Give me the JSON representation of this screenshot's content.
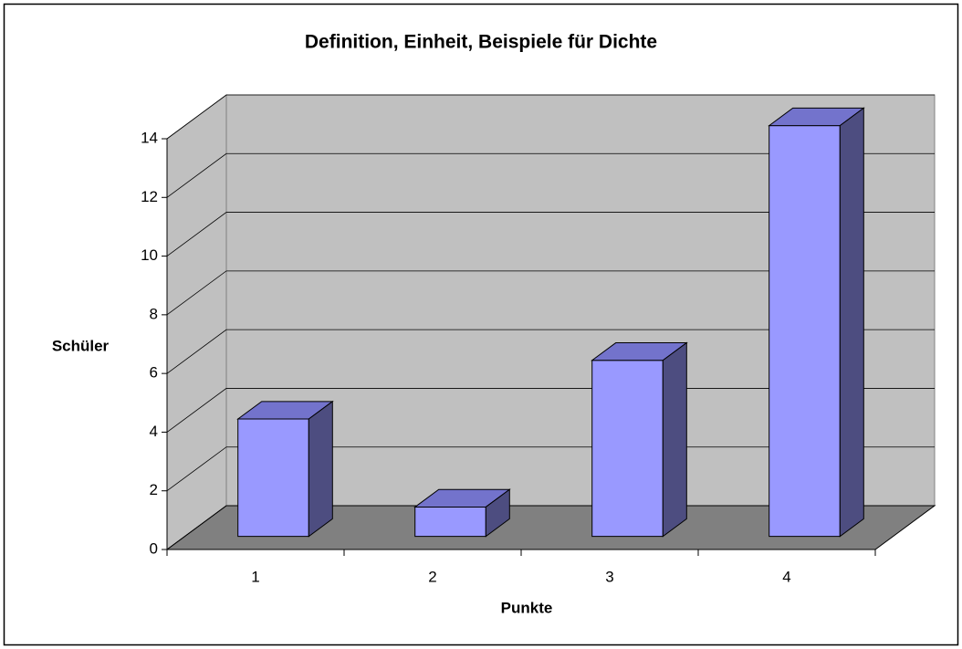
{
  "chart_data": {
    "type": "bar3d",
    "title": "Definition, Einheit, Beispiele für Dichte",
    "x_label": "Punkte",
    "y_label": "Schüler",
    "categories": [
      "1",
      "2",
      "3",
      "4"
    ],
    "values": [
      4,
      1,
      6,
      14
    ],
    "color": "#9999ff",
    "ylim": [
      0,
      14
    ],
    "yticks": [
      0,
      2,
      4,
      6,
      8,
      10,
      12,
      14
    ],
    "grid": true
  }
}
